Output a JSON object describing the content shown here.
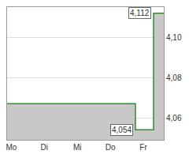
{
  "chart_data": {
    "type": "area",
    "x": [
      -0.13,
      3.76,
      4.31,
      4.62
    ],
    "values": [
      4.067,
      4.054,
      4.112,
      4.112
    ],
    "color": "#2e8b2e",
    "line_style": "step",
    "xlim": [
      -0.13,
      4.62
    ],
    "xticks": [
      {
        "value": 0,
        "label": "Mo"
      },
      {
        "value": 1,
        "label": "Di"
      },
      {
        "value": 2,
        "label": "Mi"
      },
      {
        "value": 3,
        "label": "Do"
      },
      {
        "value": 4,
        "label": "Fr"
      }
    ],
    "ylim": [
      4.049,
      4.115
    ],
    "yticks": [
      {
        "value": 4.06,
        "label": "4,06"
      },
      {
        "value": 4.08,
        "label": "4,08"
      },
      {
        "value": 4.1,
        "label": "4,10"
      }
    ],
    "grid": true,
    "annotations": [
      {
        "x": 4.31,
        "y": 4.112,
        "text": "4,112"
      },
      {
        "x": 3.76,
        "y": 4.054,
        "text": "4,054"
      }
    ]
  }
}
